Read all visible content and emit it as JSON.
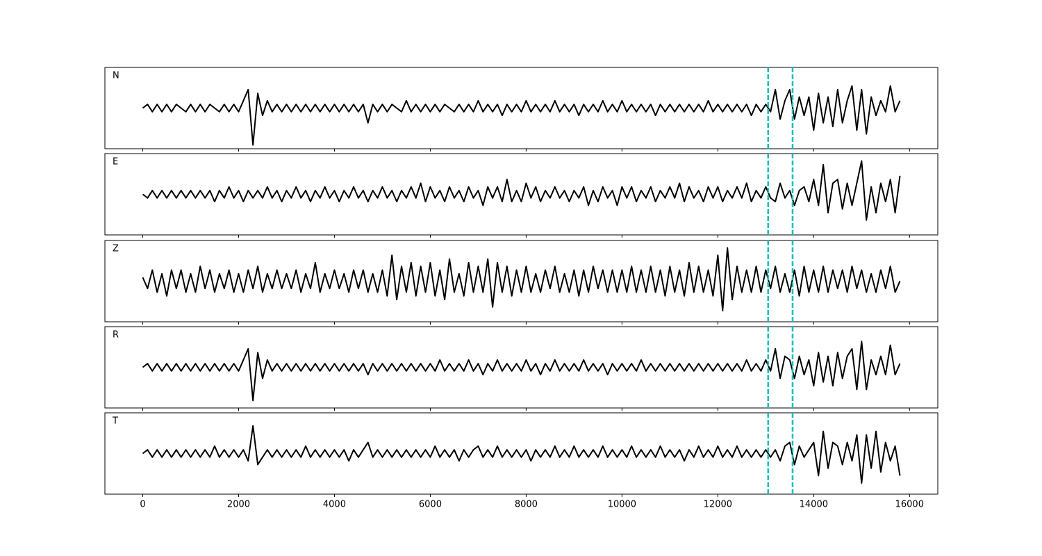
{
  "chart_data": {
    "type": "line",
    "x": [
      0,
      100,
      200,
      300,
      400,
      500,
      600,
      700,
      800,
      900,
      1000,
      1100,
      1200,
      1300,
      1400,
      1500,
      1600,
      1700,
      1800,
      1900,
      2000,
      2100,
      2200,
      2300,
      2400,
      2500,
      2600,
      2700,
      2800,
      2900,
      3000,
      3100,
      3200,
      3300,
      3400,
      3500,
      3600,
      3700,
      3800,
      3900,
      4000,
      4100,
      4200,
      4300,
      4400,
      4500,
      4600,
      4700,
      4800,
      4900,
      5000,
      5100,
      5200,
      5300,
      5400,
      5500,
      5600,
      5700,
      5800,
      5900,
      6000,
      6100,
      6200,
      6300,
      6400,
      6500,
      6600,
      6700,
      6800,
      6900,
      7000,
      7100,
      7200,
      7300,
      7400,
      7500,
      7600,
      7700,
      7800,
      7900,
      8000,
      8100,
      8200,
      8300,
      8400,
      8500,
      8600,
      8700,
      8800,
      8900,
      9000,
      9100,
      9200,
      9300,
      9400,
      9500,
      9600,
      9700,
      9800,
      9900,
      10000,
      10100,
      10200,
      10300,
      10400,
      10500,
      10600,
      10700,
      10800,
      10900,
      11000,
      11100,
      11200,
      11300,
      11400,
      11500,
      11600,
      11700,
      11800,
      11900,
      12000,
      12100,
      12200,
      12300,
      12400,
      12500,
      12600,
      12700,
      12800,
      12900,
      13000,
      13100,
      13200,
      13300,
      13400,
      13500,
      13600,
      13700,
      13800,
      13900,
      14000,
      14100,
      14200,
      14300,
      14400,
      14500,
      14600,
      14700,
      14800,
      14900,
      15000,
      15100,
      15200,
      15300,
      15400,
      15500,
      15600,
      15700,
      15800
    ],
    "xlim": [
      -790,
      16590
    ],
    "xticks": [
      0,
      2000,
      4000,
      6000,
      8000,
      10000,
      12000,
      14000,
      16000
    ],
    "ylim": [
      -1.1,
      1.1
    ],
    "vlines": [
      13050,
      13560
    ],
    "vline_color": "#00bfbf",
    "series": [
      {
        "name": "N",
        "color": "#000000",
        "values": [
          0,
          0.1,
          -0.1,
          0.1,
          -0.1,
          0.1,
          -0.1,
          0.1,
          0,
          -0.1,
          0.1,
          -0.1,
          0.1,
          -0.1,
          0.1,
          0,
          -0.1,
          0.1,
          -0.1,
          0.1,
          -0.1,
          0.2,
          0.5,
          -1,
          0.4,
          -0.2,
          0.2,
          -0.1,
          0.1,
          -0.1,
          0.1,
          -0.1,
          0.1,
          -0.1,
          0.1,
          -0.1,
          0.1,
          -0.1,
          0.1,
          -0.1,
          0.1,
          -0.1,
          0.1,
          -0.1,
          0.1,
          -0.1,
          0.1,
          -0.4,
          0.1,
          -0.1,
          0.1,
          -0.1,
          0.1,
          0,
          -0.1,
          0.2,
          -0.1,
          0.1,
          -0.1,
          0.1,
          -0.1,
          0.1,
          -0.1,
          0.1,
          0,
          -0.1,
          0.1,
          -0.1,
          0.1,
          -0.1,
          0.2,
          -0.1,
          0.1,
          -0.1,
          0.1,
          -0.2,
          0.1,
          -0.1,
          0.1,
          -0.1,
          0.2,
          -0.1,
          0.1,
          -0.1,
          0.1,
          -0.1,
          0.2,
          -0.1,
          0.1,
          -0.1,
          0.1,
          -0.2,
          0.1,
          -0.1,
          0.1,
          -0.1,
          0.2,
          -0.1,
          0.1,
          -0.1,
          0.2,
          -0.1,
          0.1,
          -0.1,
          0.1,
          -0.1,
          0.1,
          -0.2,
          0.1,
          -0.1,
          0.1,
          -0.1,
          0.1,
          -0.1,
          0.1,
          -0.1,
          0.1,
          -0.1,
          0.2,
          -0.1,
          0.1,
          -0.1,
          0.1,
          -0.1,
          0.1,
          -0.1,
          0.1,
          -0.2,
          0.1,
          -0.1,
          0.1,
          -0.1,
          0.5,
          -0.3,
          0.2,
          0.5,
          -0.3,
          0.3,
          -0.2,
          0.3,
          -0.6,
          0.4,
          -0.4,
          0.3,
          -0.5,
          0.5,
          -0.4,
          0.2,
          0.6,
          -0.6,
          0.5,
          -0.7,
          0.3,
          -0.2,
          0.2,
          -0.1,
          0.6,
          -0.1,
          0.2
        ]
      },
      {
        "name": "E",
        "color": "#000000",
        "values": [
          0,
          -0.1,
          0.1,
          -0.1,
          0.1,
          -0.1,
          0.1,
          -0.1,
          0.1,
          -0.1,
          0.1,
          -0.1,
          0.1,
          -0.1,
          0.1,
          -0.2,
          0.1,
          -0.1,
          0.2,
          -0.1,
          0.1,
          -0.2,
          0.1,
          -0.1,
          0.1,
          -0.1,
          0.2,
          -0.1,
          0.1,
          -0.2,
          0.1,
          -0.1,
          0.2,
          -0.1,
          0.1,
          -0.2,
          0.1,
          -0.1,
          0.2,
          -0.1,
          0.1,
          -0.2,
          0.1,
          -0.1,
          0.2,
          -0.1,
          0.1,
          -0.2,
          0.1,
          -0.1,
          0.2,
          -0.1,
          0.1,
          -0.2,
          0.1,
          -0.1,
          0.2,
          -0.1,
          0.3,
          -0.2,
          0.2,
          -0.1,
          0.1,
          -0.2,
          0.2,
          -0.1,
          0.1,
          -0.2,
          0.2,
          -0.1,
          0.1,
          -0.3,
          0.2,
          -0.1,
          0.2,
          -0.2,
          0.4,
          -0.2,
          0.1,
          -0.2,
          0.3,
          -0.1,
          0.2,
          -0.2,
          0.1,
          -0.1,
          0.2,
          -0.1,
          0.1,
          -0.2,
          0.1,
          -0.1,
          0.2,
          -0.3,
          0.1,
          -0.2,
          0.2,
          -0.1,
          0.1,
          -0.3,
          0.2,
          -0.1,
          0.2,
          -0.2,
          0.1,
          -0.1,
          0.2,
          -0.2,
          0.1,
          -0.1,
          0.2,
          -0.1,
          0.3,
          -0.2,
          0.2,
          -0.1,
          0.1,
          -0.2,
          0.2,
          -0.1,
          0.2,
          -0.2,
          0.1,
          -0.1,
          0.2,
          -0.1,
          0.3,
          -0.2,
          0.1,
          -0.1,
          0.2,
          -0.1,
          -0.2,
          0.3,
          -0.1,
          0.1,
          -0.3,
          0.1,
          0.2,
          -0.2,
          0.4,
          -0.3,
          0.8,
          -0.5,
          0.3,
          0.4,
          -0.4,
          0.3,
          -0.3,
          0.3,
          0.9,
          -0.7,
          0.2,
          -0.5,
          0.3,
          -0.2,
          0.4,
          -0.5,
          0.5
        ]
      },
      {
        "name": "Z",
        "color": "#000000",
        "values": [
          0.1,
          -0.2,
          0.3,
          -0.3,
          0.2,
          -0.4,
          0.3,
          -0.2,
          0.3,
          -0.3,
          0.2,
          -0.3,
          0.4,
          -0.2,
          0.3,
          -0.3,
          0.2,
          -0.2,
          0.3,
          -0.3,
          0.2,
          -0.3,
          0.3,
          -0.2,
          0.4,
          -0.3,
          0.2,
          -0.2,
          0.3,
          -0.2,
          0.2,
          -0.2,
          0.3,
          -0.3,
          0.2,
          -0.2,
          0.5,
          -0.3,
          0.2,
          -0.2,
          0.3,
          -0.2,
          0.2,
          -0.3,
          0.3,
          -0.2,
          0.3,
          -0.3,
          0.2,
          -0.3,
          0.3,
          -0.4,
          0.7,
          -0.5,
          0.4,
          -0.3,
          0.5,
          -0.4,
          0.4,
          -0.3,
          0.5,
          -0.4,
          0.3,
          -0.5,
          0.6,
          -0.3,
          0.2,
          -0.4,
          0.5,
          -0.3,
          0.4,
          -0.3,
          0.6,
          -0.7,
          0.5,
          -0.3,
          0.4,
          -0.4,
          0.3,
          -0.3,
          0.4,
          -0.3,
          0.2,
          -0.3,
          0.3,
          -0.2,
          0.4,
          -0.3,
          0.2,
          -0.3,
          0.3,
          -0.4,
          0.3,
          -0.3,
          0.4,
          -0.2,
          0.3,
          -0.3,
          0.3,
          -0.3,
          0.3,
          -0.3,
          0.4,
          -0.3,
          0.3,
          -0.3,
          0.4,
          -0.3,
          0.3,
          -0.4,
          0.4,
          -0.3,
          0.3,
          -0.4,
          0.5,
          -0.3,
          0.4,
          -0.3,
          0.3,
          -0.4,
          0.7,
          -0.8,
          0.9,
          -0.5,
          0.4,
          -0.3,
          0.3,
          -0.3,
          0.4,
          -0.3,
          0.3,
          -0.2,
          0.4,
          -0.3,
          0.2,
          -0.3,
          0.3,
          -0.4,
          0.4,
          -0.3,
          0.3,
          -0.3,
          0.4,
          -0.3,
          0.3,
          -0.2,
          0.3,
          -0.3,
          0.4,
          -0.2,
          0.3,
          -0.3,
          0.2,
          -0.3,
          0.3,
          -0.2,
          0.4,
          -0.3,
          0
        ]
      },
      {
        "name": "R",
        "color": "#000000",
        "values": [
          0,
          0.1,
          -0.1,
          0.1,
          -0.1,
          0.1,
          -0.1,
          0.1,
          -0.1,
          0.1,
          -0.1,
          0.1,
          -0.1,
          0.1,
          -0.1,
          0.1,
          -0.1,
          0.1,
          -0.1,
          0.1,
          -0.1,
          0.2,
          0.5,
          -0.9,
          0.4,
          -0.3,
          0.2,
          -0.1,
          0.1,
          -0.1,
          0.1,
          -0.1,
          0.1,
          -0.1,
          0.1,
          -0.1,
          0.1,
          -0.1,
          0.1,
          -0.1,
          0.1,
          -0.1,
          0.1,
          -0.1,
          0.1,
          -0.1,
          0.1,
          -0.2,
          0.1,
          -0.1,
          0.1,
          -0.1,
          0.1,
          -0.1,
          0.1,
          -0.1,
          0.1,
          -0.1,
          0.1,
          -0.1,
          0.1,
          -0.1,
          0.2,
          -0.1,
          0.1,
          -0.1,
          0.1,
          -0.1,
          0.2,
          -0.1,
          0.1,
          -0.2,
          0.1,
          -0.1,
          0.2,
          -0.1,
          0.1,
          -0.1,
          0.1,
          -0.1,
          0.2,
          -0.1,
          0.1,
          -0.2,
          0.1,
          -0.1,
          0.2,
          -0.1,
          0.1,
          -0.1,
          0.1,
          -0.1,
          0.2,
          -0.1,
          0.1,
          -0.1,
          0.1,
          -0.2,
          0.1,
          -0.1,
          0.1,
          -0.1,
          0.1,
          -0.1,
          0.2,
          -0.1,
          0.1,
          -0.1,
          0.1,
          -0.1,
          0.1,
          -0.1,
          0.1,
          -0.1,
          0.1,
          -0.1,
          0.1,
          -0.1,
          0.1,
          -0.1,
          0.1,
          -0.1,
          0.1,
          -0.1,
          0.1,
          -0.1,
          0.2,
          -0.1,
          0.1,
          -0.1,
          0.2,
          -0.1,
          0.5,
          -0.3,
          0.3,
          0.2,
          -0.3,
          0.3,
          -0.2,
          0.2,
          -0.5,
          0.4,
          -0.4,
          0.3,
          -0.5,
          0.4,
          -0.3,
          0.3,
          0.5,
          -0.6,
          0.7,
          -0.6,
          0.2,
          -0.2,
          0.3,
          -0.2,
          0.6,
          -0.2,
          0.1
        ]
      },
      {
        "name": "T",
        "color": "#000000",
        "values": [
          0,
          0.1,
          -0.1,
          0.1,
          -0.1,
          0.1,
          -0.1,
          0.1,
          -0.1,
          0.1,
          -0.1,
          0.1,
          -0.1,
          0.1,
          -0.1,
          0.2,
          -0.1,
          0.1,
          -0.1,
          0.1,
          -0.1,
          0.1,
          -0.2,
          0.75,
          -0.3,
          -0.1,
          0.1,
          -0.1,
          0.1,
          -0.1,
          0.1,
          -0.1,
          0.1,
          -0.1,
          0.2,
          -0.1,
          0.1,
          -0.1,
          0.1,
          -0.1,
          0.1,
          -0.1,
          0.1,
          -0.2,
          0.1,
          -0.1,
          0.1,
          0.3,
          -0.1,
          0.1,
          -0.1,
          0.1,
          -0.1,
          0.1,
          -0.1,
          0.1,
          -0.1,
          0.1,
          -0.1,
          0.1,
          -0.1,
          0.2,
          -0.1,
          0.1,
          -0.1,
          0.1,
          -0.2,
          0.1,
          -0.1,
          0.1,
          0.2,
          -0.1,
          0.1,
          -0.1,
          0.2,
          -0.1,
          0.1,
          -0.1,
          0.1,
          -0.1,
          0.1,
          -0.2,
          0.1,
          -0.1,
          0.1,
          -0.1,
          0.2,
          -0.1,
          0.1,
          -0.1,
          0.2,
          -0.1,
          0.1,
          -0.1,
          0.1,
          -0.1,
          0.2,
          -0.1,
          0.1,
          -0.1,
          0.1,
          -0.1,
          0.2,
          -0.1,
          0.1,
          -0.1,
          0.1,
          -0.1,
          0.2,
          -0.1,
          0.1,
          -0.1,
          0.1,
          -0.2,
          0.1,
          -0.1,
          0.2,
          -0.1,
          0.1,
          -0.1,
          0.2,
          -0.1,
          0.1,
          -0.1,
          0.2,
          -0.1,
          0.1,
          -0.1,
          0.1,
          -0.1,
          0.1,
          -0.1,
          0.1,
          -0.2,
          0.2,
          0.3,
          -0.3,
          0.2,
          -0.1,
          0.1,
          0.3,
          -0.6,
          0.6,
          -0.4,
          0.3,
          0.2,
          -0.3,
          0.3,
          -0.2,
          0.5,
          -0.8,
          0.5,
          -0.4,
          0.6,
          -0.5,
          0.3,
          -0.2,
          0.2,
          -0.6
        ]
      }
    ]
  }
}
